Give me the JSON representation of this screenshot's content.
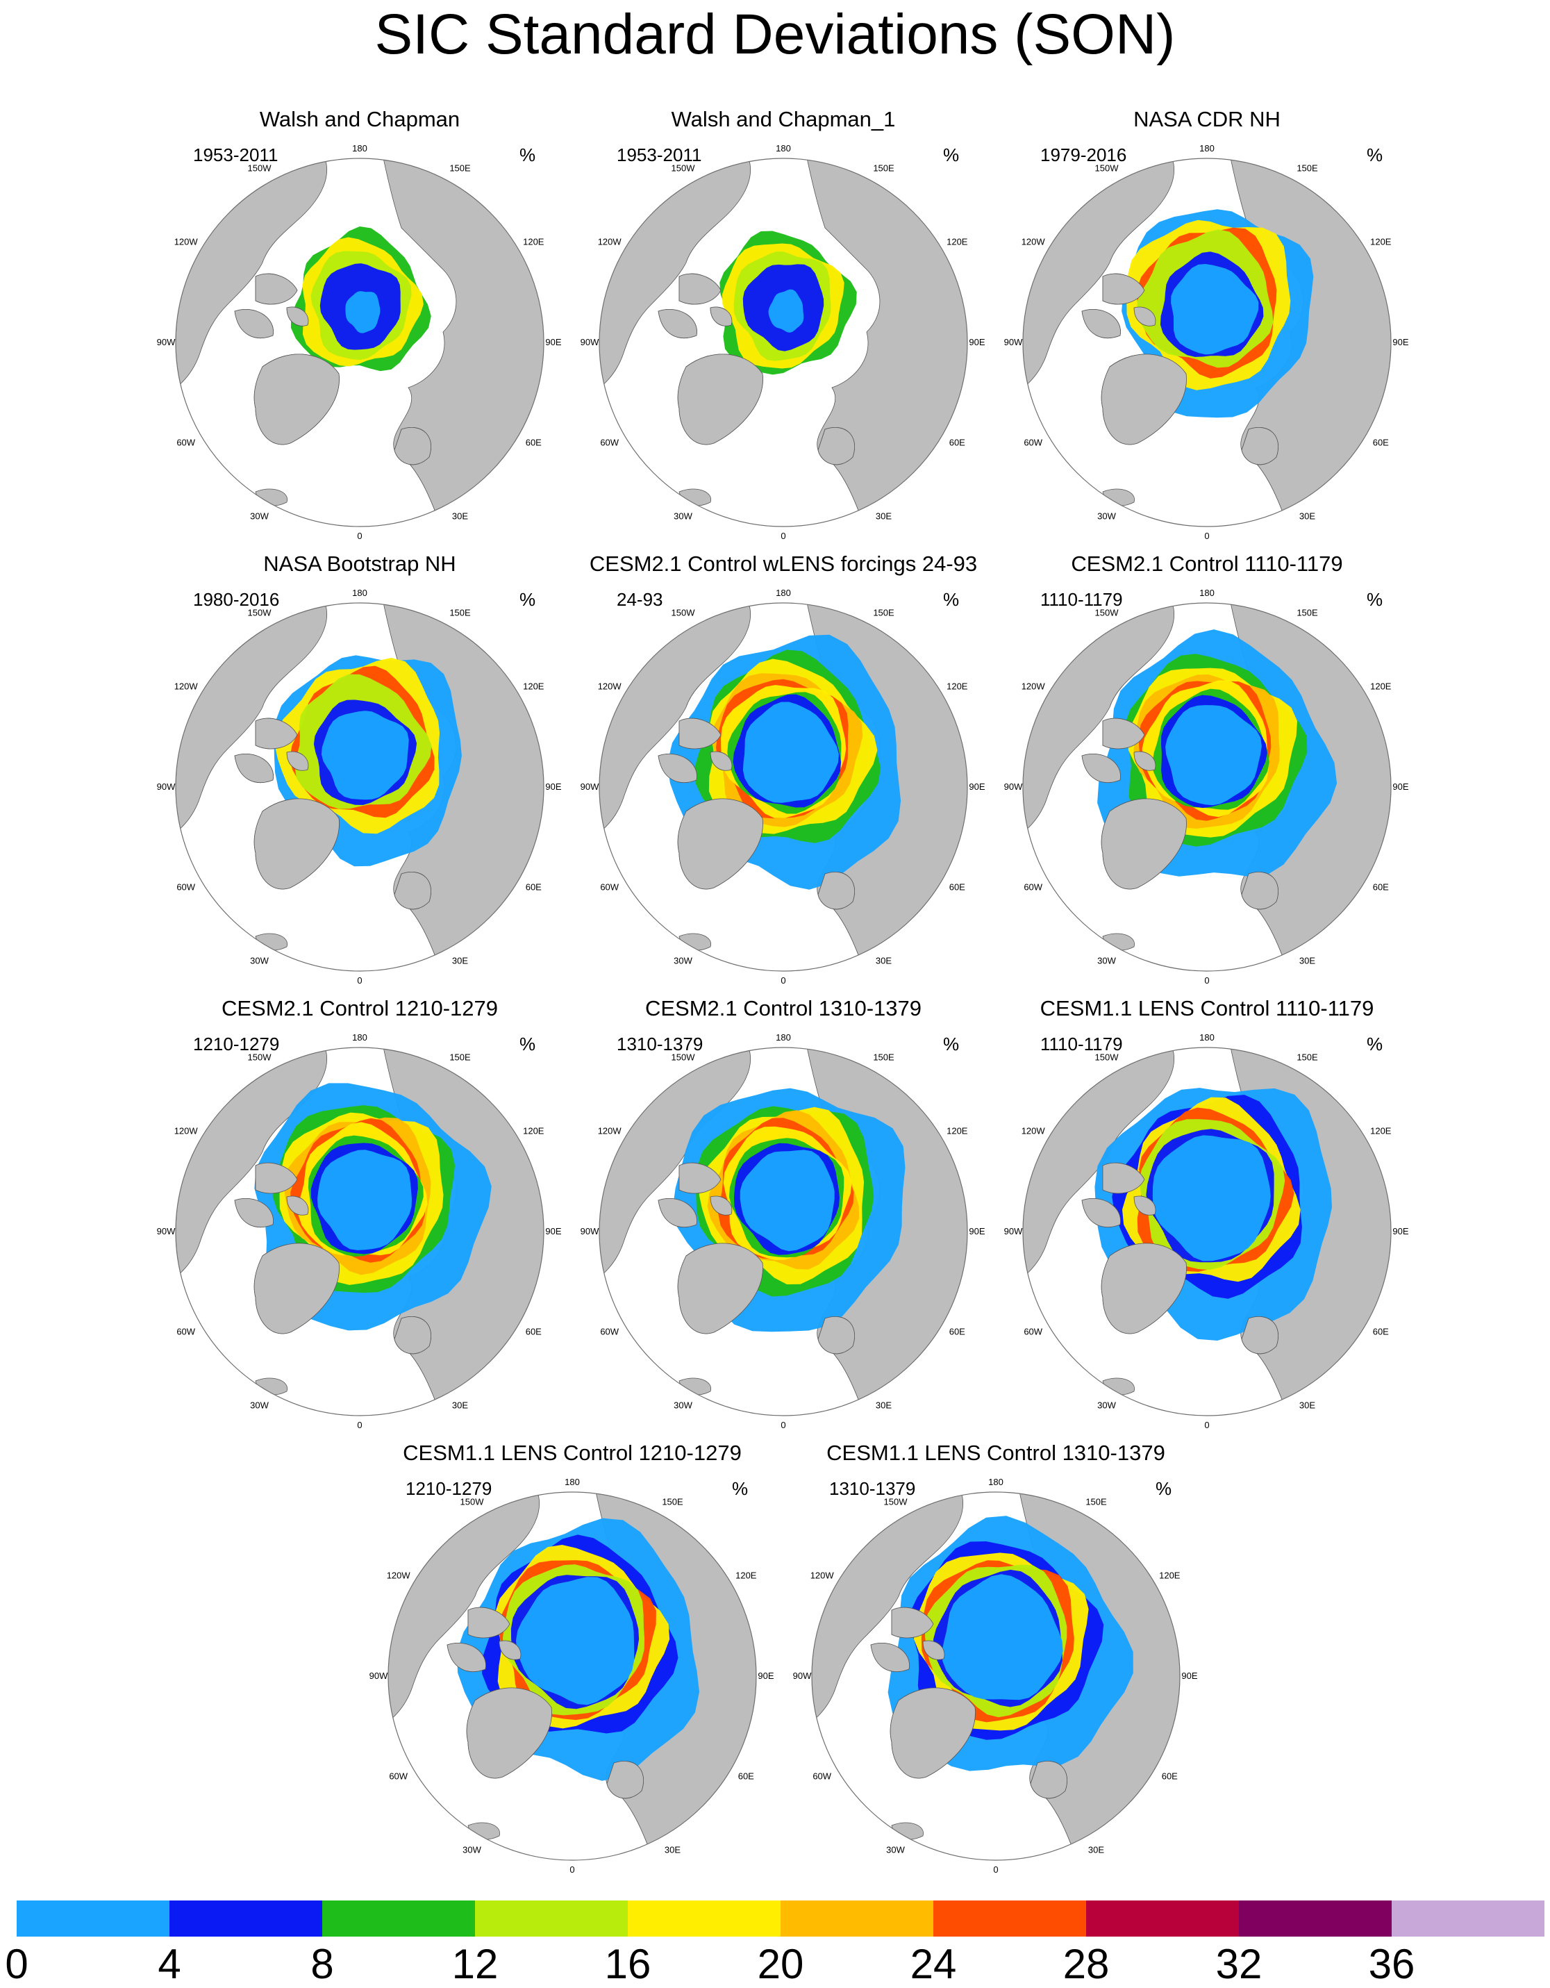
{
  "title": "SIC Standard Deviations (SON)",
  "panels": [
    {
      "title": "Walsh and Chapman",
      "period": "1953-2011",
      "unit": "%",
      "pattern": "wc"
    },
    {
      "title": "Walsh and Chapman_1",
      "period": "1953-2011",
      "unit": "%",
      "pattern": "wc"
    },
    {
      "title": "NASA CDR NH",
      "period": "1979-2016",
      "unit": "%",
      "pattern": "obs"
    },
    {
      "title": "NASA Bootstrap NH",
      "period": "1980-2016",
      "unit": "%",
      "pattern": "obs"
    },
    {
      "title": "CESM2.1 Control wLENS forcings 24-93",
      "period": "24-93",
      "unit": "%",
      "pattern": "model"
    },
    {
      "title": "CESM2.1 Control 1110-1179",
      "period": "1110-1179",
      "unit": "%",
      "pattern": "model"
    },
    {
      "title": "CESM2.1 Control 1210-1279",
      "period": "1210-1279",
      "unit": "%",
      "pattern": "model"
    },
    {
      "title": "CESM2.1 Control 1310-1379",
      "period": "1310-1379",
      "unit": "%",
      "pattern": "model"
    },
    {
      "title": "CESM1.1 LENS Control 1110-1179",
      "period": "1110-1179",
      "unit": "%",
      "pattern": "lens"
    },
    {
      "title": "CESM1.1 LENS Control 1210-1279",
      "period": "1210-1279",
      "unit": "%",
      "pattern": "lens"
    },
    {
      "title": "CESM1.1 LENS Control 1310-1379",
      "period": "1310-1379",
      "unit": "%",
      "pattern": "lens"
    }
  ],
  "lon_labels": [
    "180",
    "150E",
    "120E",
    "90E",
    "60E",
    "30E",
    "0",
    "30W",
    "60W",
    "90W",
    "120W",
    "150W"
  ],
  "colorbar": {
    "labels": [
      "0",
      "4",
      "8",
      "12",
      "16",
      "20",
      "24",
      "28",
      "32",
      "36"
    ],
    "colors": [
      "#1aa3ff",
      "#0a1af5",
      "#1fbd1a",
      "#b8ec0c",
      "#ffee00",
      "#ffbb00",
      "#ff4d00",
      "#b8003a",
      "#800060",
      "#c8a8d8"
    ]
  },
  "colors": {
    "land": "#bdbdbd",
    "ocean": "#ffffff",
    "outline": "#6e6e6e"
  }
}
